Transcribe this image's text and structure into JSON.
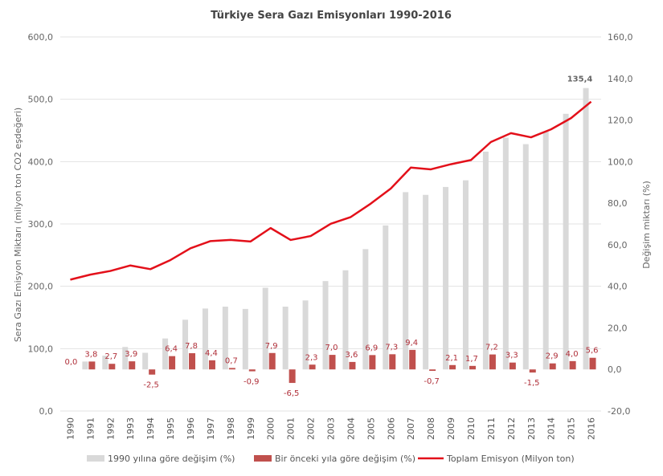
{
  "chart_data": {
    "type": "bar+line",
    "title": "Türkiye Sera Gazı Emisyonları 1990-2016",
    "ylabel_left": "Sera Gazı Emisyon Miktarı (milyon ton CO2 eşdeğeri)",
    "ylabel_right": "Değişim miktarı (%)",
    "ylim_left": [
      0,
      600
    ],
    "ylim_right": [
      -20,
      160
    ],
    "yticks_left": [
      "0,0",
      "100,0",
      "200,0",
      "300,0",
      "400,0",
      "500,0",
      "600,0"
    ],
    "yticks_right": [
      "-20,0",
      "0,0",
      "20,0",
      "40,0",
      "60,0",
      "80,0",
      "100,0",
      "120,0",
      "140,0",
      "160,0"
    ],
    "grid": true,
    "legend_position": "bottom",
    "categories": [
      "1990",
      "1991",
      "1992",
      "1993",
      "1994",
      "1995",
      "1996",
      "1997",
      "1998",
      "1999",
      "2000",
      "2001",
      "2002",
      "2003",
      "2004",
      "2005",
      "2006",
      "2007",
      "2008",
      "2009",
      "2010",
      "2011",
      "2012",
      "2013",
      "2014",
      "2015",
      "2016"
    ],
    "series": [
      {
        "name": "1990 yılına göre değişim (%)",
        "type": "bar",
        "axis": "right",
        "color": "#d9d9d9",
        "values": [
          0,
          3.8,
          6.6,
          10.8,
          8.0,
          14.9,
          23.9,
          29.3,
          30.2,
          29.1,
          39.3,
          30.2,
          33.2,
          42.5,
          47.7,
          57.9,
          69.3,
          85.3,
          84.0,
          87.8,
          91.0,
          104.8,
          111.5,
          108.4,
          114.4,
          123.0,
          135.4
        ],
        "data_labels": {
          "26": "135,4"
        }
      },
      {
        "name": "Bir önceki yıla göre değişim (%)",
        "type": "bar",
        "axis": "right",
        "color": "#c0504d",
        "values": [
          0.0,
          3.8,
          2.7,
          3.9,
          -2.5,
          6.4,
          7.8,
          4.4,
          0.7,
          -0.9,
          7.9,
          -6.5,
          2.3,
          7.0,
          3.6,
          6.9,
          7.3,
          9.4,
          -0.7,
          2.1,
          1.7,
          7.2,
          3.3,
          -1.5,
          2.9,
          4.0,
          5.6
        ],
        "data_labels": [
          "0,0",
          "3,8",
          "2,7",
          "3,9",
          "-2,5",
          "6,4",
          "7,8",
          "4,4",
          "0,7",
          "-0,9",
          "7,9",
          "-6,5",
          "2,3",
          "7,0",
          "3,6",
          "6,9",
          "7,3",
          "9,4",
          "-0,7",
          "2,1",
          "1,7",
          "7,2",
          "3,3",
          "-1,5",
          "2,9",
          "4,0",
          "5,6"
        ]
      },
      {
        "name": "Toplam Emisyon (Milyon ton)",
        "type": "line",
        "axis": "left",
        "color": "#e3101a",
        "values": [
          210.7,
          218.7,
          224.6,
          233.4,
          227.5,
          242.1,
          261.0,
          272.5,
          274.4,
          271.9,
          293.4,
          274.3,
          280.6,
          300.3,
          311.1,
          332.6,
          356.8,
          390.4,
          387.6,
          395.8,
          402.5,
          431.5,
          445.7,
          439.0,
          451.8,
          469.8,
          496.1
        ]
      }
    ]
  }
}
